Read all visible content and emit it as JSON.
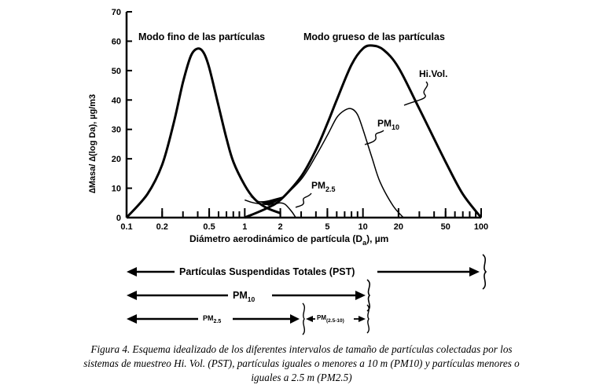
{
  "chart_data": {
    "type": "line",
    "title": "",
    "xlabel": "Diámetro aerodinámico de partícula (D",
    "xlabel_sub": "a",
    "xlabel_unit": "), µm",
    "ylabel": "∆Masa/ ∆(log Da), µg/m3",
    "xscale": "log",
    "xlim": [
      0.1,
      100
    ],
    "ylim": [
      0,
      70
    ],
    "yticks": [
      0,
      10,
      20,
      30,
      40,
      50,
      60,
      70
    ],
    "xticks": [
      0.1,
      0.2,
      0.5,
      1,
      2,
      5,
      10,
      20,
      50,
      100
    ],
    "xtick_labels": [
      "0.1",
      "0.2",
      "0.5",
      "1",
      "2",
      "5",
      "10",
      "20",
      "50",
      "100"
    ],
    "annotations": {
      "fine_mode": "Modo fino de las partículas",
      "coarse_mode": "Modo grueso de las partículas",
      "hivol": "Hi.Vol.",
      "pm10_base": "PM",
      "pm10_sub": "10",
      "pm25_base": "PM",
      "pm25_sub": "2.5"
    },
    "series": [
      {
        "name": "Modo fino",
        "x": [
          0.1,
          0.15,
          0.2,
          0.25,
          0.3,
          0.35,
          0.4,
          0.45,
          0.5,
          0.6,
          0.7,
          0.8,
          1.0,
          1.2,
          1.5,
          2.0
        ],
        "y": [
          0,
          8,
          18,
          32,
          46,
          55,
          57.5,
          56,
          51,
          38,
          27,
          19,
          11,
          6.5,
          3.5,
          1.5
        ]
      },
      {
        "name": "Hi.Vol.",
        "x": [
          1.0,
          1.5,
          2,
          3,
          4,
          5,
          6,
          8,
          10,
          12,
          15,
          20,
          30,
          50,
          70,
          100
        ],
        "y": [
          0,
          3,
          6,
          14,
          23,
          32,
          40,
          52,
          57.5,
          58.5,
          57,
          51,
          37,
          19,
          8,
          0
        ]
      },
      {
        "name": "PM10",
        "x": [
          2,
          3,
          4,
          5,
          6,
          7,
          8,
          9,
          10,
          12,
          14,
          18,
          22
        ],
        "y": [
          6,
          13,
          21,
          28,
          34,
          36.5,
          37,
          35,
          30,
          20,
          12,
          4,
          0
        ]
      },
      {
        "name": "PM2.5",
        "x": [
          1.0,
          1.2,
          1.5,
          1.8,
          2.0,
          2.2,
          2.5,
          2.7
        ],
        "y": [
          6,
          5,
          4.5,
          4.7,
          5,
          4.5,
          2,
          0
        ]
      }
    ]
  },
  "ranges": {
    "pst_label": "Partículas Suspendidas Totales (PST)",
    "pm10_base": "PM",
    "pm10_sub": "10",
    "pm25_base": "PM",
    "pm25_sub": "2.5",
    "pmcoarse_base": "PM",
    "pmcoarse_sub": "(2.5-10)"
  },
  "caption": {
    "line1": "Figura 4.   Esquema idealizado de los diferentes intervalos de tamaño de partículas colectadas por los",
    "line2": "sistemas de muestreo Hi. Vol. (PST), partículas iguales o menores a 10 m (PM10) y partículas menores o",
    "line3": "iguales a 2.5 m (PM2.5)"
  }
}
